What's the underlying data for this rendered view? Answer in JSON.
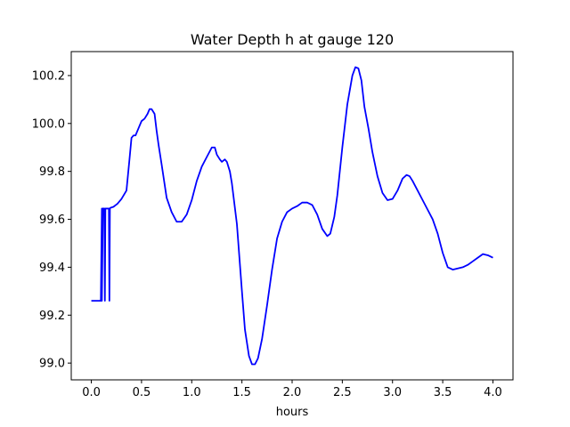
{
  "chart_data": {
    "type": "line",
    "title": "Water Depth h at gauge 120",
    "xlabel": "hours",
    "ylabel": "",
    "xlim": [
      -0.2,
      4.2
    ],
    "ylim": [
      98.93,
      100.3
    ],
    "xticks": [
      0.0,
      0.5,
      1.0,
      1.5,
      2.0,
      2.5,
      3.0,
      3.5,
      4.0
    ],
    "xtick_labels": [
      "0.0",
      "0.5",
      "1.0",
      "1.5",
      "2.0",
      "2.5",
      "3.0",
      "3.5",
      "4.0"
    ],
    "yticks": [
      99.0,
      99.2,
      99.4,
      99.6,
      99.8,
      100.0,
      100.2
    ],
    "ytick_labels": [
      "99.0",
      "99.2",
      "99.4",
      "99.6",
      "99.8",
      "100.0",
      "100.2"
    ],
    "grid": false,
    "legend": "none",
    "series": [
      {
        "color": "#0000ff",
        "x": [
          0.0,
          0.09,
          0.095,
          0.105,
          0.105,
          0.115,
          0.125,
          0.13,
          0.135,
          0.14,
          0.16,
          0.17,
          0.175,
          0.18,
          0.185,
          0.19,
          0.22,
          0.26,
          0.3,
          0.35,
          0.38,
          0.4,
          0.42,
          0.44,
          0.47,
          0.5,
          0.53,
          0.56,
          0.58,
          0.6,
          0.63,
          0.65,
          0.67,
          0.7,
          0.75,
          0.8,
          0.85,
          0.9,
          0.95,
          1.0,
          1.05,
          1.1,
          1.15,
          1.2,
          1.23,
          1.25,
          1.28,
          1.3,
          1.33,
          1.35,
          1.38,
          1.4,
          1.45,
          1.5,
          1.53,
          1.57,
          1.6,
          1.63,
          1.66,
          1.7,
          1.75,
          1.8,
          1.85,
          1.9,
          1.95,
          2.0,
          2.05,
          2.1,
          2.15,
          2.2,
          2.25,
          2.3,
          2.35,
          2.38,
          2.42,
          2.45,
          2.5,
          2.55,
          2.6,
          2.63,
          2.66,
          2.69,
          2.72,
          2.76,
          2.8,
          2.85,
          2.9,
          2.95,
          3.0,
          3.05,
          3.1,
          3.14,
          3.17,
          3.2,
          3.25,
          3.3,
          3.35,
          3.4,
          3.45,
          3.5,
          3.55,
          3.6,
          3.65,
          3.7,
          3.75,
          3.8,
          3.85,
          3.9,
          3.95,
          4.0
        ],
        "y": [
          99.26,
          99.26,
          99.26,
          99.645,
          99.26,
          99.645,
          99.645,
          99.645,
          99.26,
          99.645,
          99.645,
          99.645,
          99.645,
          99.26,
          99.645,
          99.648,
          99.652,
          99.665,
          99.685,
          99.72,
          99.85,
          99.94,
          99.95,
          99.95,
          99.98,
          100.01,
          100.02,
          100.04,
          100.06,
          100.06,
          100.04,
          99.97,
          99.91,
          99.83,
          99.69,
          99.63,
          99.59,
          99.59,
          99.62,
          99.68,
          99.76,
          99.82,
          99.86,
          99.9,
          99.9,
          99.87,
          99.85,
          99.84,
          99.85,
          99.84,
          99.8,
          99.75,
          99.58,
          99.3,
          99.14,
          99.03,
          98.995,
          98.995,
          99.02,
          99.1,
          99.24,
          99.39,
          99.52,
          99.59,
          99.63,
          99.645,
          99.655,
          99.67,
          99.67,
          99.66,
          99.62,
          99.56,
          99.53,
          99.54,
          99.61,
          99.7,
          99.9,
          100.08,
          100.2,
          100.235,
          100.23,
          100.18,
          100.07,
          99.98,
          99.88,
          99.78,
          99.71,
          99.68,
          99.685,
          99.72,
          99.77,
          99.785,
          99.78,
          99.76,
          99.72,
          99.68,
          99.64,
          99.6,
          99.54,
          99.46,
          99.4,
          99.39,
          99.395,
          99.4,
          99.41,
          99.425,
          99.44,
          99.455,
          99.45,
          99.44
        ]
      }
    ]
  }
}
